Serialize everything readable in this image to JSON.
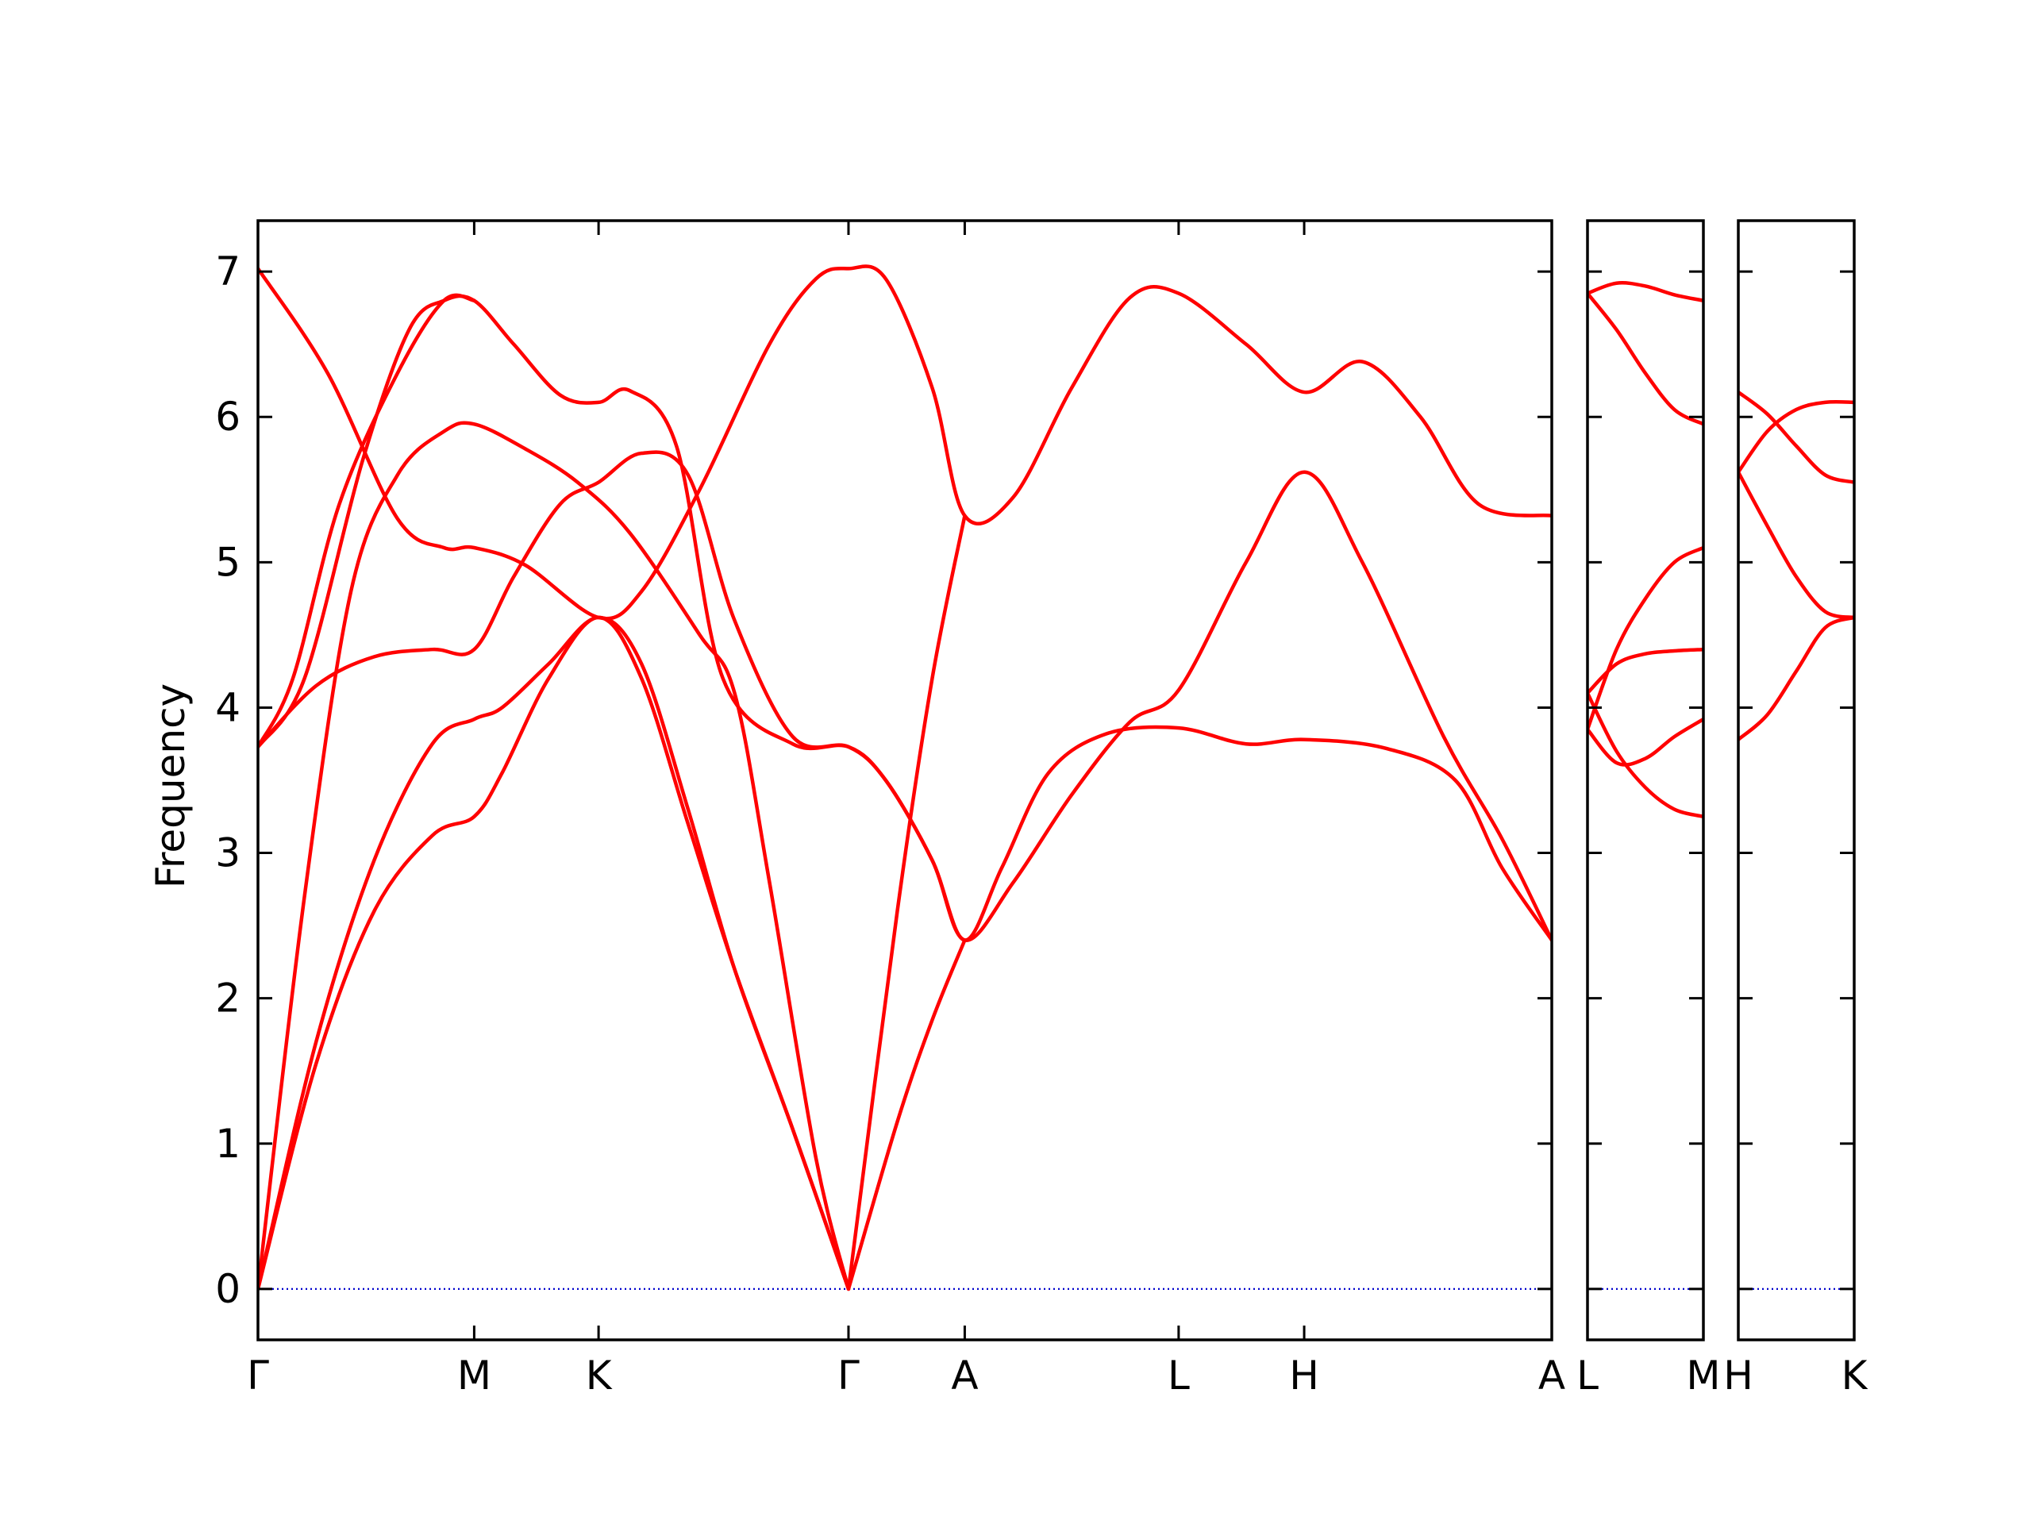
{
  "chart_data": {
    "type": "line",
    "ylabel": "Frequency",
    "ylim": [
      -0.35,
      7.35
    ],
    "yticks": [
      0,
      1,
      2,
      3,
      4,
      5,
      6,
      7
    ],
    "colors": {
      "bands": "#ff0000",
      "zero_line": "#0000cc",
      "frame": "#000000"
    },
    "zero_line": {
      "y": 0,
      "style": "dotted"
    },
    "panels": [
      {
        "xlim": [
          0,
          11.13
        ],
        "ticks": [
          {
            "label": "Γ",
            "x": 0
          },
          {
            "label": "M",
            "x": 1.86
          },
          {
            "label": "K",
            "x": 2.93
          },
          {
            "label": "Γ",
            "x": 5.08
          },
          {
            "label": "A",
            "x": 6.08
          },
          {
            "label": "L",
            "x": 7.92
          },
          {
            "label": "H",
            "x": 9.0
          },
          {
            "label": "A",
            "x": 11.13
          }
        ],
        "series": [
          {
            "points": [
              [
                0,
                0
              ],
              [
                0.5,
                1.55
              ],
              [
                1.0,
                2.6
              ],
              [
                1.5,
                3.12
              ],
              [
                1.86,
                3.25
              ],
              [
                2.1,
                3.55
              ],
              [
                2.5,
                4.2
              ],
              [
                2.93,
                4.62
              ],
              [
                3.3,
                4.2
              ],
              [
                3.7,
                3.2
              ],
              [
                4.1,
                2.2
              ],
              [
                4.6,
                1.1
              ],
              [
                5.08,
                0
              ]
            ]
          },
          {
            "points": [
              [
                0,
                0
              ],
              [
                0.5,
                1.7
              ],
              [
                1.0,
                2.95
              ],
              [
                1.5,
                3.75
              ],
              [
                1.86,
                3.92
              ],
              [
                2.1,
                4.0
              ],
              [
                2.5,
                4.3
              ],
              [
                2.93,
                4.62
              ],
              [
                3.3,
                4.3
              ],
              [
                3.7,
                3.3
              ],
              [
                4.1,
                2.2
              ],
              [
                4.6,
                1.1
              ],
              [
                5.08,
                0
              ]
            ]
          },
          {
            "points": [
              [
                0,
                0
              ],
              [
                0.4,
                2.7
              ],
              [
                0.8,
                4.8
              ],
              [
                1.2,
                5.6
              ],
              [
                1.6,
                5.9
              ],
              [
                1.86,
                5.95
              ],
              [
                2.3,
                5.78
              ],
              [
                2.75,
                5.55
              ],
              [
                3.2,
                5.2
              ],
              [
                3.8,
                4.5
              ],
              [
                4.1,
                4.1
              ],
              [
                4.4,
                2.8
              ],
              [
                4.8,
                0.9
              ],
              [
                5.08,
                0
              ]
            ]
          },
          {
            "points": [
              [
                0,
                7.02
              ],
              [
                0.6,
                6.3
              ],
              [
                1.2,
                5.3
              ],
              [
                1.6,
                5.1
              ],
              [
                1.86,
                5.1
              ],
              [
                2.3,
                4.98
              ],
              [
                2.93,
                4.62
              ],
              [
                3.3,
                4.8
              ],
              [
                3.8,
                5.5
              ],
              [
                4.4,
                6.5
              ],
              [
                4.8,
                6.95
              ],
              [
                5.08,
                7.02
              ],
              [
                5.4,
                6.95
              ],
              [
                5.8,
                6.2
              ],
              [
                6.08,
                5.32
              ],
              [
                6.5,
                5.45
              ],
              [
                7.0,
                6.2
              ],
              [
                7.5,
                6.82
              ],
              [
                7.92,
                6.85
              ],
              [
                8.5,
                6.5
              ],
              [
                9.0,
                6.17
              ],
              [
                9.5,
                6.38
              ],
              [
                10.0,
                6.0
              ],
              [
                10.5,
                5.4
              ],
              [
                11.13,
                5.32
              ]
            ]
          },
          {
            "points": [
              [
                0,
                3.73
              ],
              [
                0.4,
                4.2
              ],
              [
                0.9,
                5.7
              ],
              [
                1.3,
                6.6
              ],
              [
                1.6,
                6.8
              ],
              [
                1.86,
                6.8
              ],
              [
                2.2,
                6.5
              ],
              [
                2.6,
                6.15
              ],
              [
                2.93,
                6.1
              ],
              [
                3.2,
                6.18
              ],
              [
                3.6,
                5.8
              ],
              [
                4.0,
                4.2
              ],
              [
                4.6,
                3.75
              ],
              [
                5.08,
                3.73
              ],
              [
                5.4,
                3.5
              ],
              [
                5.8,
                2.95
              ],
              [
                6.08,
                2.4
              ],
              [
                6.4,
                2.9
              ],
              [
                6.8,
                3.55
              ],
              [
                7.3,
                3.82
              ],
              [
                7.92,
                3.86
              ],
              [
                8.5,
                3.75
              ],
              [
                9.0,
                3.78
              ],
              [
                9.7,
                3.72
              ],
              [
                10.3,
                3.5
              ],
              [
                10.7,
                2.9
              ],
              [
                11.13,
                2.4
              ]
            ]
          },
          {
            "points": [
              [
                0,
                3.73
              ],
              [
                0.5,
                4.15
              ],
              [
                1.0,
                4.35
              ],
              [
                1.5,
                4.4
              ],
              [
                1.86,
                4.4
              ],
              [
                2.2,
                4.9
              ],
              [
                2.6,
                5.4
              ],
              [
                2.93,
                5.55
              ],
              [
                3.3,
                5.75
              ],
              [
                3.7,
                5.6
              ],
              [
                4.1,
                4.6
              ],
              [
                4.6,
                3.8
              ],
              [
                5.08,
                3.73
              ],
              [
                5.4,
                3.5
              ],
              [
                5.8,
                2.95
              ],
              [
                6.08,
                2.4
              ],
              [
                6.5,
                2.8
              ],
              [
                7.0,
                3.4
              ],
              [
                7.5,
                3.9
              ],
              [
                7.92,
                4.12
              ],
              [
                8.5,
                5.0
              ],
              [
                9.0,
                5.62
              ],
              [
                9.5,
                5.0
              ],
              [
                10.2,
                3.8
              ],
              [
                10.7,
                3.1
              ],
              [
                11.13,
                2.4
              ]
            ]
          },
          {
            "points": [
              [
                0,
                3.73
              ],
              [
                0.3,
                4.2
              ],
              [
                0.7,
                5.4
              ],
              [
                1.2,
                6.3
              ],
              [
                1.6,
                6.8
              ],
              [
                1.86,
                6.8
              ]
            ]
          },
          {
            "points": [
              [
                5.08,
                0
              ],
              [
                5.5,
                2.6
              ],
              [
                5.8,
                4.2
              ],
              [
                6.08,
                5.32
              ]
            ]
          },
          {
            "points": [
              [
                5.08,
                0
              ],
              [
                5.5,
                1.15
              ],
              [
                5.8,
                1.85
              ],
              [
                6.08,
                2.4
              ]
            ]
          }
        ]
      },
      {
        "xlim": [
          0,
          1
        ],
        "ticks": [
          {
            "label": "L",
            "x": 0
          },
          {
            "label": "M",
            "x": 1
          }
        ],
        "series": [
          {
            "points": [
              [
                0,
                6.85
              ],
              [
                0.25,
                6.92
              ],
              [
                0.5,
                6.9
              ],
              [
                0.75,
                6.84
              ],
              [
                1,
                6.8
              ]
            ]
          },
          {
            "points": [
              [
                0,
                6.85
              ],
              [
                0.25,
                6.6
              ],
              [
                0.5,
                6.3
              ],
              [
                0.75,
                6.05
              ],
              [
                1,
                5.95
              ]
            ]
          },
          {
            "points": [
              [
                0,
                3.85
              ],
              [
                0.25,
                4.4
              ],
              [
                0.5,
                4.75
              ],
              [
                0.75,
                5.0
              ],
              [
                1,
                5.1
              ]
            ]
          },
          {
            "points": [
              [
                0,
                4.1
              ],
              [
                0.25,
                4.3
              ],
              [
                0.5,
                4.37
              ],
              [
                0.75,
                4.39
              ],
              [
                1,
                4.4
              ]
            ]
          },
          {
            "points": [
              [
                0,
                4.1
              ],
              [
                0.25,
                3.7
              ],
              [
                0.5,
                3.45
              ],
              [
                0.75,
                3.3
              ],
              [
                1,
                3.25
              ]
            ]
          },
          {
            "points": [
              [
                0,
                3.85
              ],
              [
                0.25,
                3.62
              ],
              [
                0.5,
                3.65
              ],
              [
                0.75,
                3.8
              ],
              [
                1,
                3.92
              ]
            ]
          }
        ]
      },
      {
        "xlim": [
          0,
          1
        ],
        "ticks": [
          {
            "label": "H",
            "x": 0
          },
          {
            "label": "K",
            "x": 1
          }
        ],
        "series": [
          {
            "points": [
              [
                0,
                6.17
              ],
              [
                0.25,
                6.02
              ],
              [
                0.5,
                5.8
              ],
              [
                0.75,
                5.6
              ],
              [
                1,
                5.55
              ]
            ]
          },
          {
            "points": [
              [
                0,
                5.62
              ],
              [
                0.25,
                5.9
              ],
              [
                0.5,
                6.05
              ],
              [
                0.75,
                6.1
              ],
              [
                1,
                6.1
              ]
            ]
          },
          {
            "points": [
              [
                0,
                5.62
              ],
              [
                0.25,
                5.25
              ],
              [
                0.5,
                4.9
              ],
              [
                0.75,
                4.66
              ],
              [
                1,
                4.62
              ]
            ]
          },
          {
            "points": [
              [
                0,
                3.78
              ],
              [
                0.25,
                3.95
              ],
              [
                0.5,
                4.25
              ],
              [
                0.75,
                4.55
              ],
              [
                1,
                4.62
              ]
            ]
          }
        ]
      }
    ]
  }
}
